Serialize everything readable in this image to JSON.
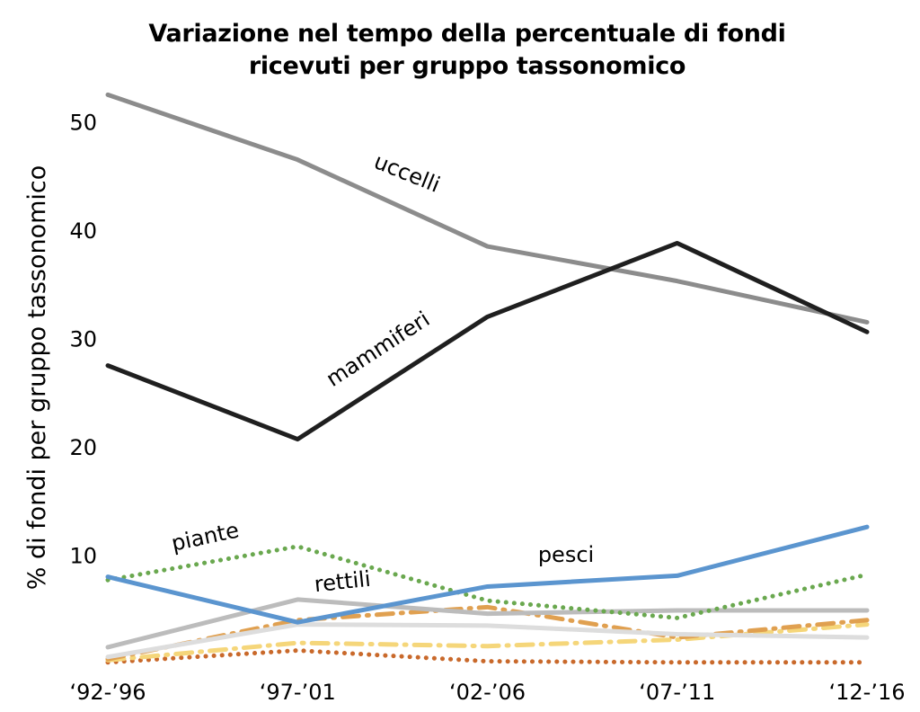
{
  "chart_data": {
    "type": "line",
    "title_lines": [
      "Variazione nel tempo della percentuale di fondi",
      "ricevuti per gruppo tassonomico"
    ],
    "ylabel": "% di fondi per gruppo tassonomico",
    "xlabel": "",
    "categories": [
      "‘92-’96",
      "‘97-’01",
      "‘02-’06",
      "‘07-’11",
      "‘12-’16"
    ],
    "y_ticks": [
      10,
      20,
      30,
      40,
      50
    ],
    "ylim": [
      0,
      55
    ],
    "grid": false,
    "series": [
      {
        "name": "uccelli",
        "values": [
          52.5,
          46.5,
          38.5,
          35.3,
          31.5
        ],
        "color": "#8c8c8c",
        "style": "solid"
      },
      {
        "name": "mammiferi",
        "values": [
          27.5,
          20.7,
          32.0,
          38.8,
          30.6
        ],
        "color": "#1f1f1f",
        "style": "solid"
      },
      {
        "name": "piante",
        "values": [
          7.7,
          10.8,
          5.8,
          4.2,
          8.2
        ],
        "color": "#6aa84f",
        "style": "dotted"
      },
      {
        "name": "pesci",
        "values": [
          8.0,
          3.8,
          7.1,
          8.1,
          12.6
        ],
        "color": "#5b95cf",
        "style": "solid"
      },
      {
        "name": "rettili",
        "values": [
          1.5,
          5.9,
          4.6,
          4.9,
          4.9
        ],
        "color": "#bcbcbc",
        "style": "solid"
      },
      {
        "name": "",
        "values": [
          0.6,
          3.6,
          3.5,
          2.7,
          2.4
        ],
        "color": "#dddddd",
        "style": "solid"
      },
      {
        "name": "",
        "values": [
          0.4,
          4.0,
          5.2,
          2.4,
          4.0
        ],
        "color": "#e0a050",
        "style": "dashdot"
      },
      {
        "name": "",
        "values": [
          0.3,
          1.9,
          1.6,
          2.2,
          3.6
        ],
        "color": "#f5d67a",
        "style": "dashdot"
      },
      {
        "name": "",
        "values": [
          0.1,
          1.2,
          0.2,
          0.1,
          0.1
        ],
        "color": "#c9692b",
        "style": "dotted"
      }
    ]
  }
}
